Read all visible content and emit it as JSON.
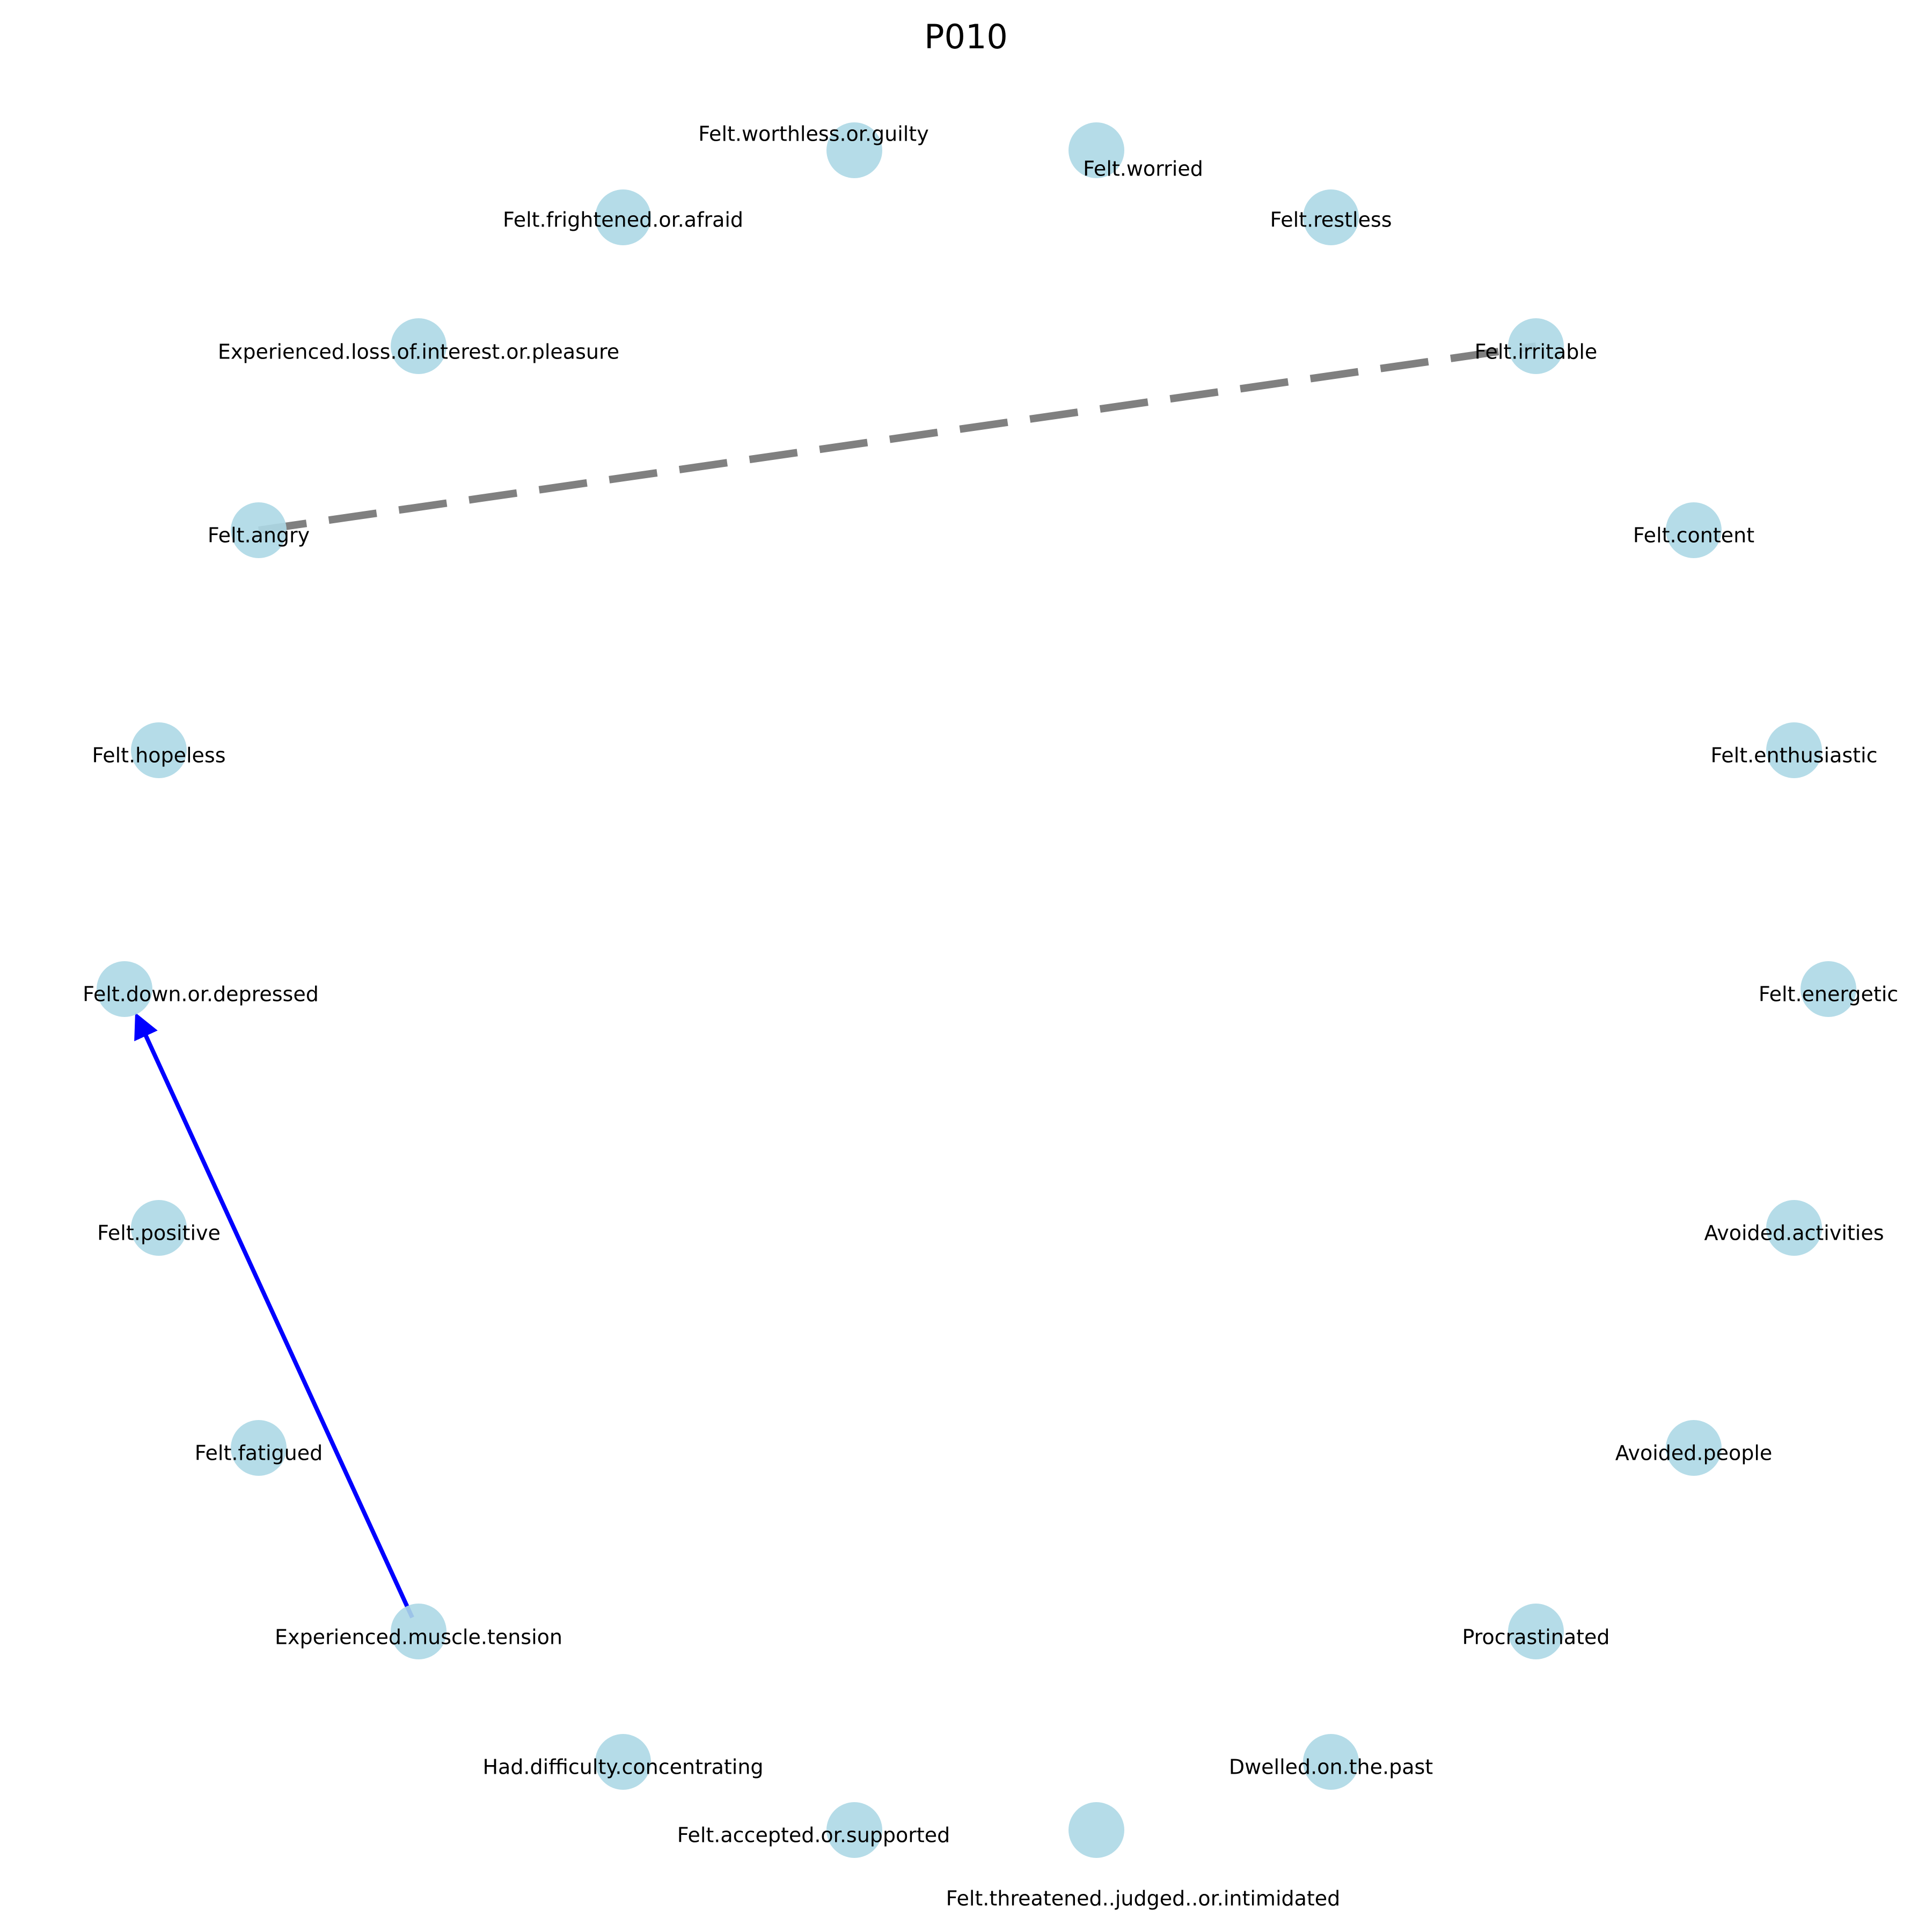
{
  "title": "P010",
  "colors": {
    "node": "#add8e6",
    "edge_dashed": "#808080",
    "edge_directed": "#0000ff"
  },
  "nodes": [
    {
      "id": "Felt.worthless.or.guilty",
      "label": "Felt.worthless.or.guilty"
    },
    {
      "id": "Felt.worried",
      "label": "Felt.worried"
    },
    {
      "id": "Felt.frightened.or.afraid",
      "label": "Felt.frightened.or.afraid"
    },
    {
      "id": "Felt.restless",
      "label": "Felt.restless"
    },
    {
      "id": "Experienced.loss.of.interest.or.pleasure",
      "label": "Experienced.loss.of.interest.or.pleasure"
    },
    {
      "id": "Felt.irritable",
      "label": "Felt.irritable"
    },
    {
      "id": "Felt.angry",
      "label": "Felt.angry"
    },
    {
      "id": "Felt.content",
      "label": "Felt.content"
    },
    {
      "id": "Felt.hopeless",
      "label": "Felt.hopeless"
    },
    {
      "id": "Felt.enthusiastic",
      "label": "Felt.enthusiastic"
    },
    {
      "id": "Felt.down.or.depressed",
      "label": "Felt.down.or.depressed"
    },
    {
      "id": "Felt.energetic",
      "label": "Felt.energetic"
    },
    {
      "id": "Felt.positive",
      "label": "Felt.positive"
    },
    {
      "id": "Avoided.activities",
      "label": "Avoided.activities"
    },
    {
      "id": "Felt.fatigued",
      "label": "Felt.fatigued"
    },
    {
      "id": "Avoided.people",
      "label": "Avoided.people"
    },
    {
      "id": "Experienced.muscle.tension",
      "label": "Experienced.muscle.tension"
    },
    {
      "id": "Procrastinated",
      "label": "Procrastinated"
    },
    {
      "id": "Had.difficulty.concentrating",
      "label": "Had.difficulty.concentrating"
    },
    {
      "id": "Dwelled.on.the.past",
      "label": "Dwelled.on.the.past"
    },
    {
      "id": "Felt.accepted.or.supported",
      "label": "Felt.accepted.or.supported"
    },
    {
      "id": "Felt.threatened..judged..or.intimidated",
      "label": "Felt.threatened..judged..or.intimidated"
    }
  ],
  "edges": [
    {
      "source": "Felt.angry",
      "target": "Felt.irritable",
      "style": "dashed",
      "directed": false,
      "color": "#808080"
    },
    {
      "source": "Experienced.muscle.tension",
      "target": "Felt.down.or.depressed",
      "style": "solid",
      "directed": true,
      "color": "#0000ff"
    }
  ]
}
